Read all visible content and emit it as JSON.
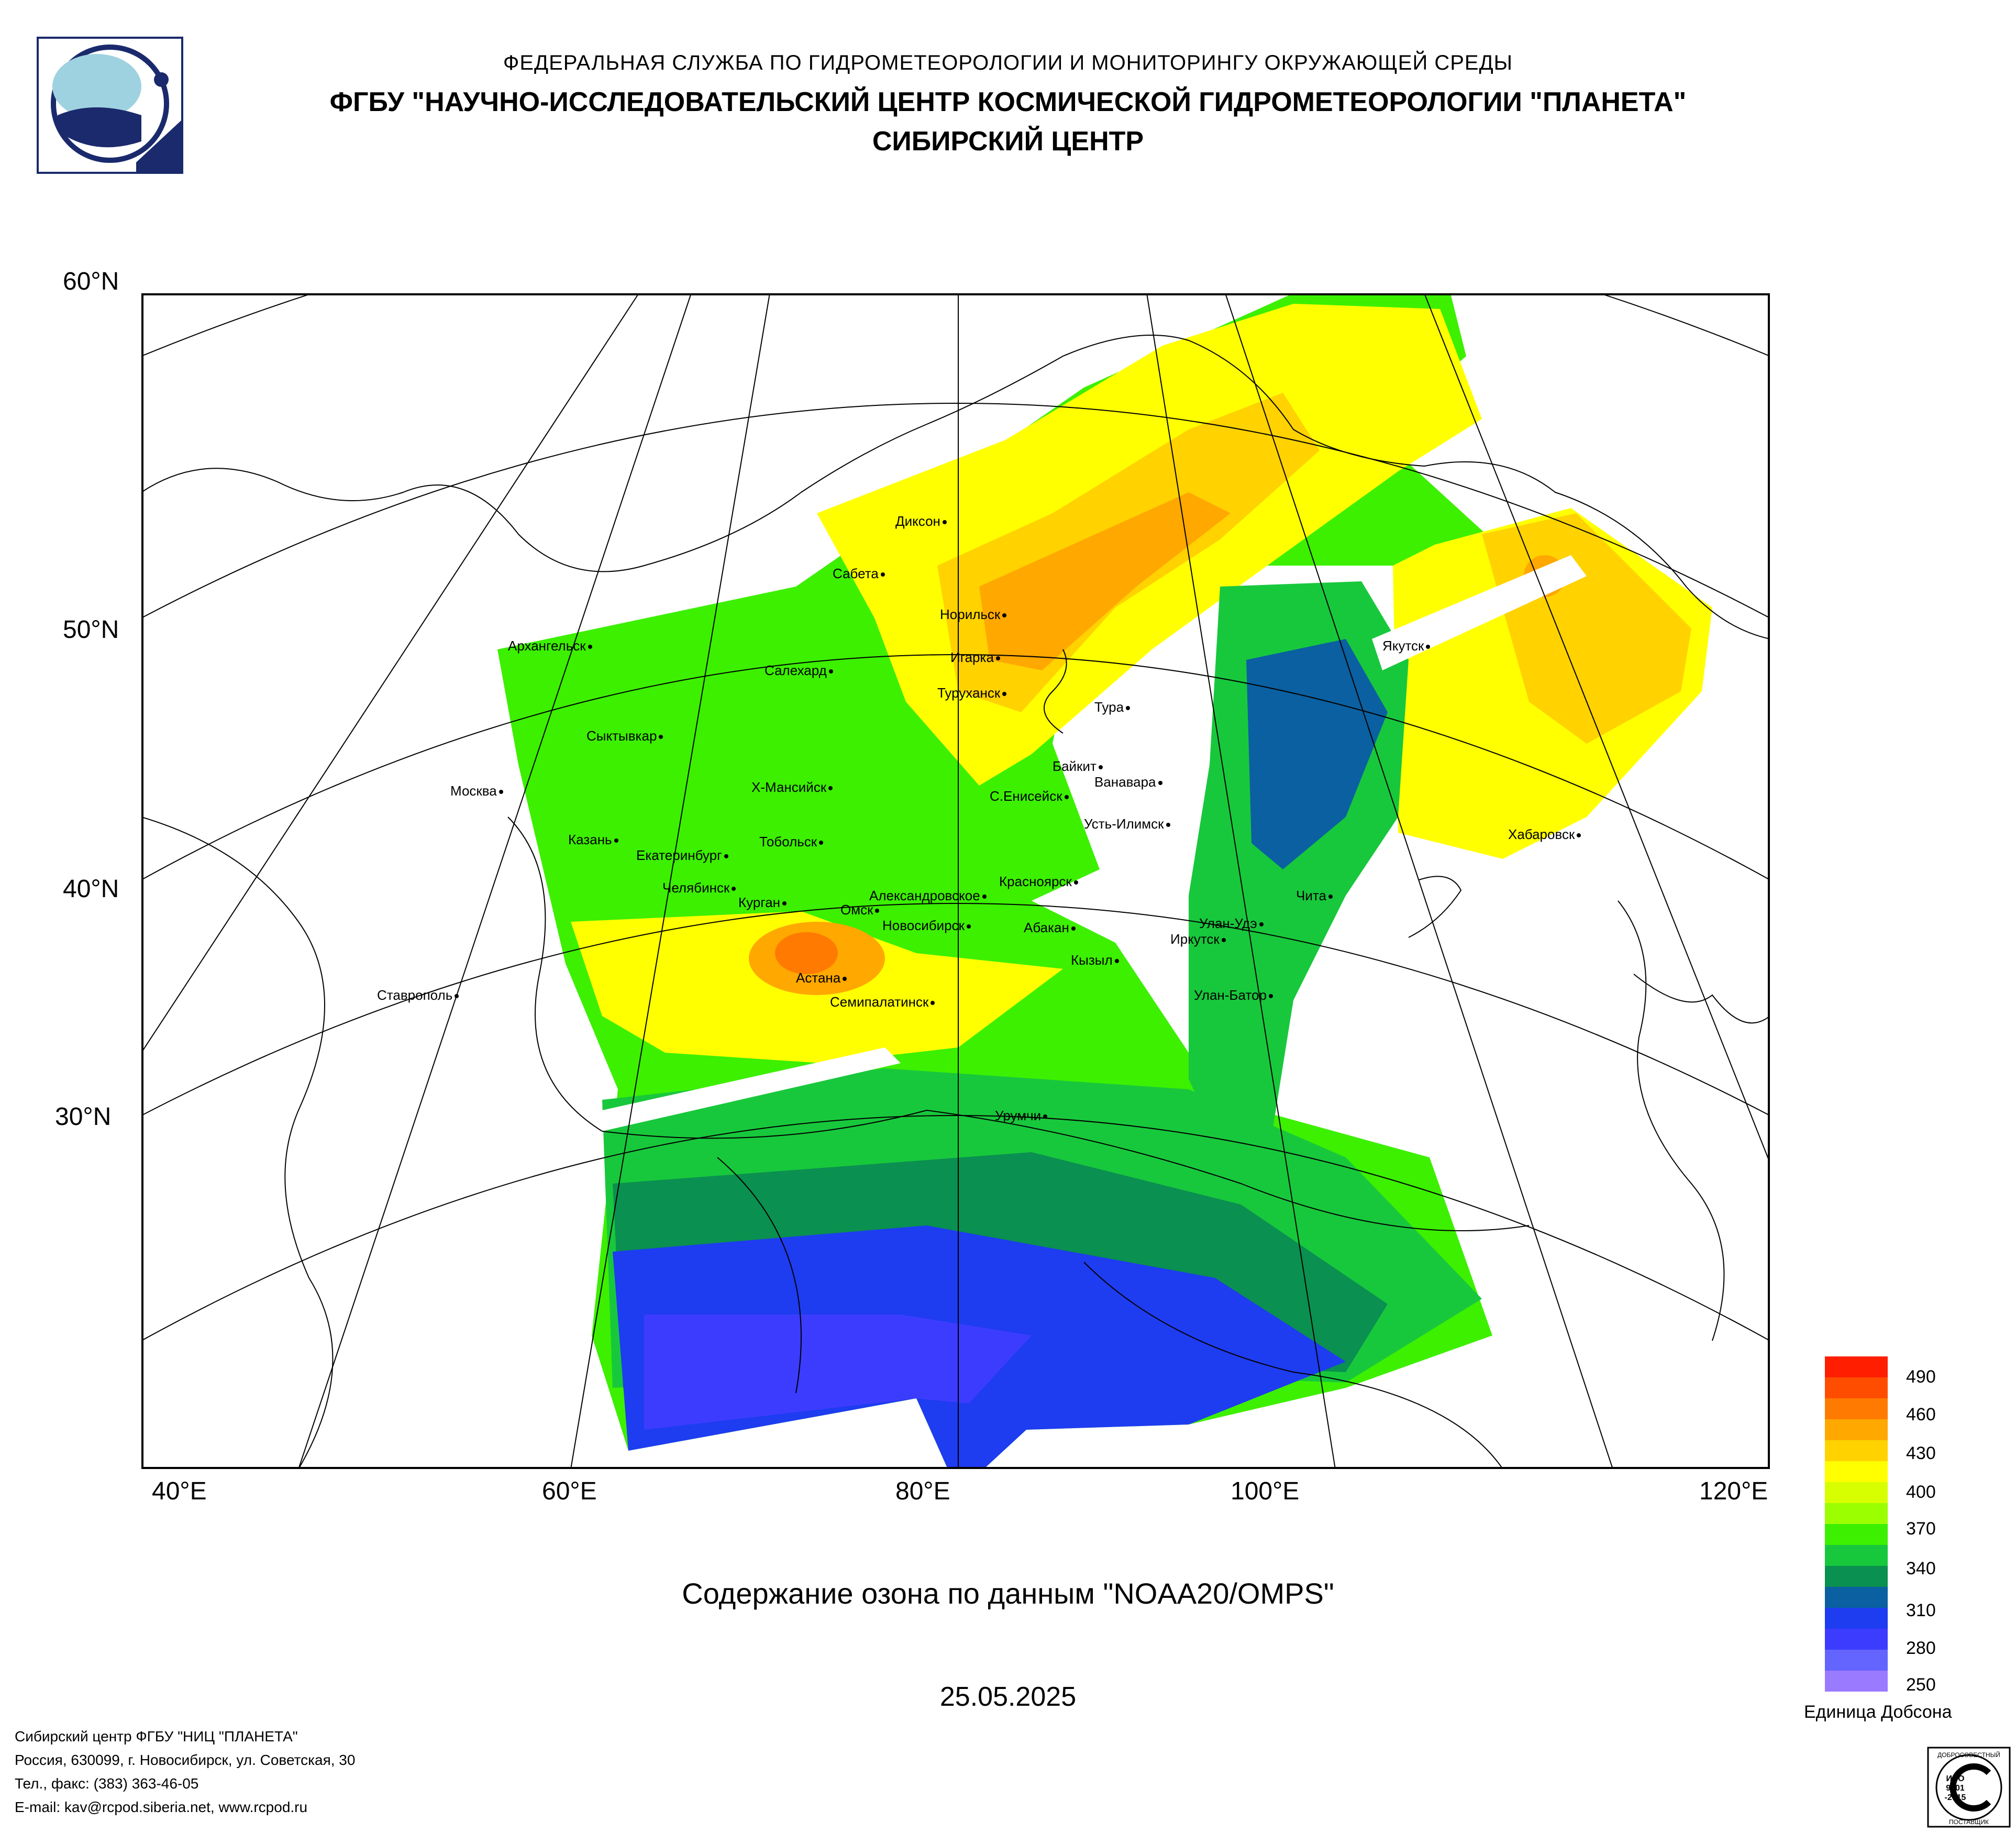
{
  "header": {
    "line1": "ФЕДЕРАЛЬНАЯ СЛУЖБА ПО ГИДРОМЕТЕОРОЛОГИИ И МОНИТОРИНГУ ОКРУЖАЮЩЕЙ СРЕДЫ",
    "line2": "ФГБУ \"НАУЧНО-ИССЛЕДОВАТЕЛЬСКИЙ ЦЕНТР КОСМИЧЕСКОЙ ГИДРОМЕТЕОРОЛОГИИ \"ПЛАНЕТА\"",
    "line3": "СИБИРСКИЙ ЦЕНТР"
  },
  "map": {
    "lat_labels": [
      "60°N",
      "50°N",
      "40°N",
      "30°N"
    ],
    "lon_labels": [
      "40°E",
      "60°E",
      "80°E",
      "100°E",
      "120°E"
    ],
    "cities": [
      "Диксон",
      "Сабета",
      "Норильск",
      "Архангельск",
      "Якутск",
      "Салехард",
      "Игарка",
      "Туруханск",
      "Тура",
      "Сыктывкар",
      "Байкит",
      "Ванавара",
      "Москва",
      "Х-Мансийск",
      "С.Енисейск",
      "Усть-Илимск",
      "Хабаровск",
      "Казань",
      "Тобольск",
      "Екатеринбург",
      "Челябинск",
      "Красноярск",
      "Александровское",
      "Чита",
      "Курган",
      "Омск",
      "Новосибирск",
      "Улан-Удэ",
      "Абакан",
      "Иркутск",
      "Кызыл",
      "Астана",
      "Ставрополь",
      "Улан-Батор",
      "Семипалатинск",
      "Урумчи"
    ]
  },
  "title": "Содержание озона по данным \"NOAA20/OMPS\"",
  "date": "25.05.2025",
  "colorbar": {
    "ticks": [
      "490",
      "460",
      "430",
      "400",
      "370",
      "340",
      "310",
      "280",
      "250"
    ],
    "unit_label": "Единица Добсона",
    "colors": [
      "#ff1e00",
      "#ff4d00",
      "#ff7a00",
      "#ffa800",
      "#ffd200",
      "#ffff00",
      "#d8ff00",
      "#9cff00",
      "#3cf000",
      "#18c83c",
      "#0a9050",
      "#0a60a0",
      "#1e3cf0",
      "#3c3cff",
      "#6464ff",
      "#9a7aff"
    ]
  },
  "footer": {
    "line1": "Сибирский центр ФГБУ \"НИЦ \"ПЛАНЕТА\"",
    "line2": "Россия, 630099, г. Новосибирск, ул. Советская, 30",
    "line3": "Тел., факс: (383) 363-46-05",
    "line4": "E-mail: kav@rcpod.siberia.net, www.rcpod.ru"
  },
  "iso_badge": {
    "top": "ДОБРОСОВЕСТНЫЙ",
    "code1": "ИСО",
    "code2": "9001",
    "code3": "-2015",
    "bottom": "ПОСТАВЩИК"
  }
}
